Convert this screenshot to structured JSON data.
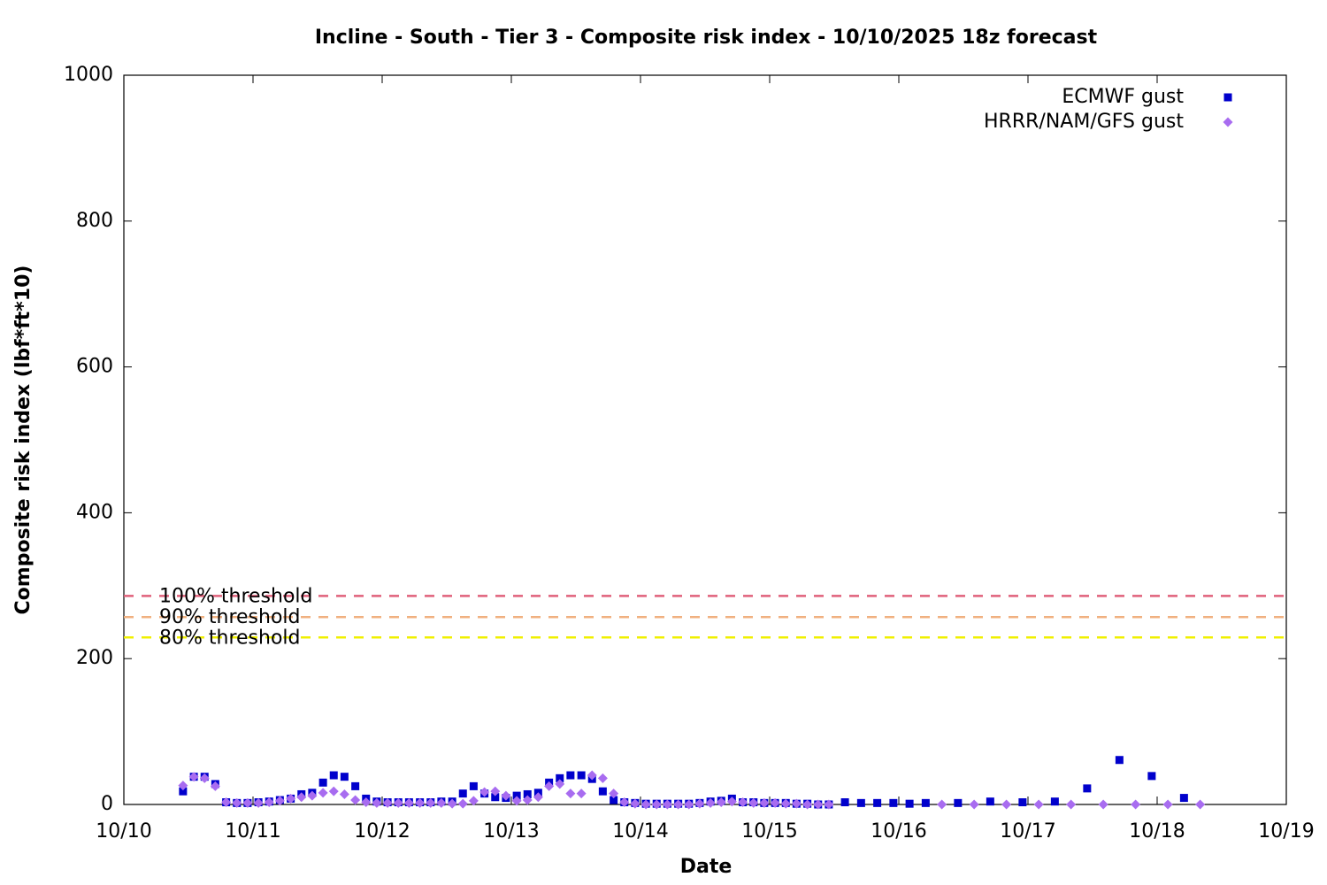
{
  "chart_data": {
    "type": "scatter",
    "title": "Incline - South - Tier 3 - Composite risk index - 10/10/2025 18z forecast",
    "x_label": "Date",
    "y_label": "Composite risk index (lbf*ft*10)",
    "xlim": [
      0,
      9
    ],
    "xticks": [
      {
        "value": 0,
        "label": "10/10"
      },
      {
        "value": 1,
        "label": "10/11"
      },
      {
        "value": 2,
        "label": "10/12"
      },
      {
        "value": 3,
        "label": "10/13"
      },
      {
        "value": 4,
        "label": "10/14"
      },
      {
        "value": 5,
        "label": "10/15"
      },
      {
        "value": 6,
        "label": "10/16"
      },
      {
        "value": 7,
        "label": "10/17"
      },
      {
        "value": 8,
        "label": "10/18"
      },
      {
        "value": 9,
        "label": "10/19"
      }
    ],
    "ylim": [
      0,
      1000
    ],
    "yticks": [
      0,
      200,
      400,
      600,
      800,
      1000
    ],
    "grid": false,
    "legend": "top-right",
    "thresholds": [
      {
        "label": "100% threshold",
        "value": 286,
        "color": "#e0607a"
      },
      {
        "label": "90% threshold",
        "value": 257,
        "color": "#f0b080"
      },
      {
        "label": "80% threshold",
        "value": 229,
        "color": "#f0f000"
      }
    ],
    "series": [
      {
        "name": "ECMWF gust",
        "color": "#0000cc",
        "marker": "square",
        "x": [
          0.458,
          0.542,
          0.625,
          0.708,
          0.792,
          0.875,
          0.958,
          1.042,
          1.125,
          1.208,
          1.292,
          1.375,
          1.458,
          1.542,
          1.625,
          1.708,
          1.792,
          1.875,
          1.958,
          2.042,
          2.125,
          2.208,
          2.292,
          2.375,
          2.458,
          2.542,
          2.625,
          2.708,
          2.792,
          2.875,
          2.958,
          3.042,
          3.125,
          3.208,
          3.292,
          3.375,
          3.458,
          3.542,
          3.625,
          3.708,
          3.792,
          3.875,
          3.958,
          4.042,
          4.125,
          4.208,
          4.292,
          4.375,
          4.458,
          4.542,
          4.625,
          4.708,
          4.792,
          4.875,
          4.958,
          5.042,
          5.125,
          5.208,
          5.292,
          5.375,
          5.458,
          5.583,
          5.708,
          5.833,
          5.958,
          6.083,
          6.208,
          6.458,
          6.708,
          6.958,
          7.208,
          7.458,
          7.708,
          7.958,
          8.208
        ],
        "values": [
          18,
          38,
          38,
          28,
          3,
          2,
          2,
          3,
          4,
          6,
          8,
          14,
          16,
          30,
          40,
          38,
          25,
          8,
          4,
          3,
          3,
          3,
          3,
          3,
          4,
          4,
          15,
          25,
          15,
          10,
          9,
          12,
          14,
          16,
          30,
          36,
          40,
          40,
          35,
          18,
          6,
          3,
          2,
          1,
          1,
          1,
          1,
          1,
          2,
          4,
          5,
          8,
          3,
          3,
          2,
          2,
          2,
          1,
          1,
          0,
          0,
          3,
          2,
          2,
          2,
          1,
          2,
          2,
          4,
          3,
          4,
          22,
          61,
          39,
          9
        ]
      },
      {
        "name": "HRRR/NAM/GFS gust",
        "color": "#a86cf0",
        "marker": "diamond",
        "x": [
          0.458,
          0.542,
          0.625,
          0.708,
          0.792,
          0.875,
          0.958,
          1.042,
          1.125,
          1.208,
          1.292,
          1.375,
          1.458,
          1.542,
          1.625,
          1.708,
          1.792,
          1.875,
          1.958,
          2.042,
          2.125,
          2.208,
          2.292,
          2.375,
          2.458,
          2.542,
          2.625,
          2.708,
          2.792,
          2.875,
          2.958,
          3.042,
          3.125,
          3.208,
          3.292,
          3.375,
          3.458,
          3.542,
          3.625,
          3.708,
          3.792,
          3.875,
          3.958,
          4.042,
          4.125,
          4.208,
          4.292,
          4.375,
          4.458,
          4.542,
          4.625,
          4.708,
          4.792,
          4.875,
          4.958,
          5.042,
          5.125,
          5.208,
          5.292,
          5.375,
          5.458,
          6.333,
          6.583,
          6.833,
          7.083,
          7.333,
          7.583,
          7.833,
          8.083,
          8.333
        ],
        "values": [
          26,
          38,
          36,
          25,
          3,
          2,
          2,
          2,
          3,
          5,
          8,
          10,
          12,
          16,
          18,
          14,
          6,
          3,
          2,
          2,
          2,
          2,
          2,
          2,
          2,
          1,
          1,
          5,
          17,
          18,
          12,
          5,
          6,
          10,
          25,
          28,
          15,
          15,
          40,
          36,
          15,
          3,
          1,
          0,
          0,
          0,
          0,
          0,
          1,
          2,
          3,
          4,
          3,
          2,
          2,
          2,
          1,
          1,
          0,
          0,
          0,
          0,
          0,
          0,
          0,
          0,
          0,
          0,
          0,
          0
        ]
      }
    ]
  }
}
